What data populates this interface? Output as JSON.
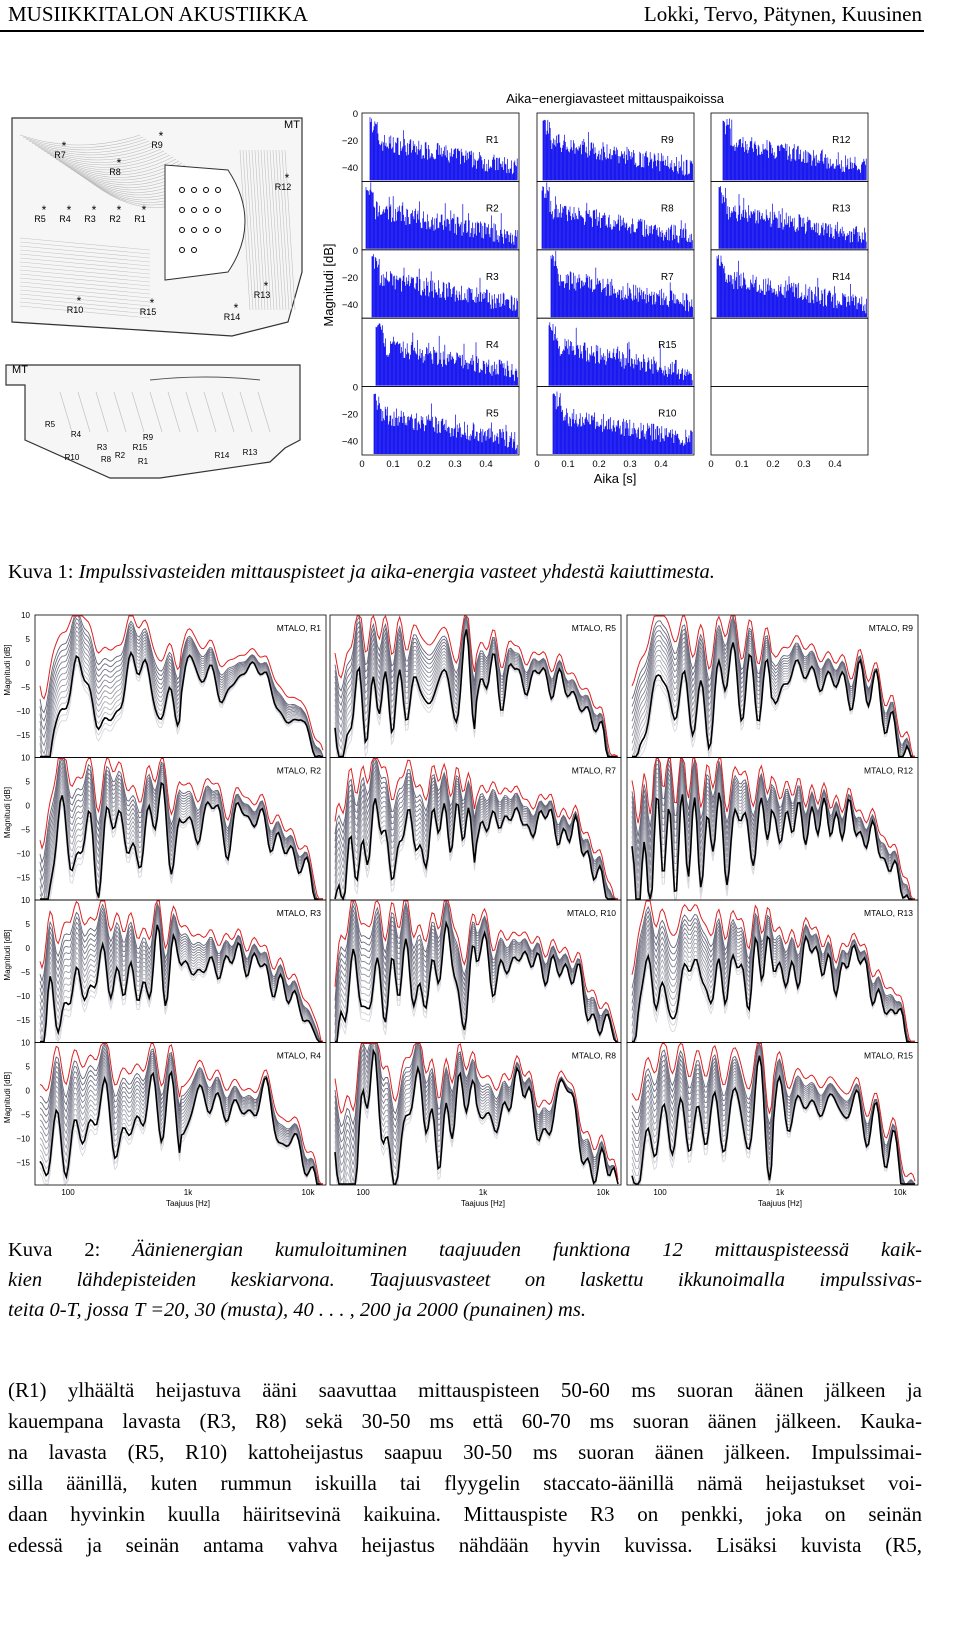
{
  "header": {
    "title": "MUSIIKKITALON AKUSTIIKKA",
    "authors": "Lokki, Tervo, Pätynen, Kuusinen"
  },
  "figure1": {
    "plan": {
      "top_labels": [
        "MT",
        "R9",
        "R7",
        "R8",
        "R12",
        "R5",
        "R4",
        "R3",
        "R2",
        "R1",
        "R13",
        "R10",
        "R15",
        "R14"
      ],
      "bottom_labels": [
        "MT",
        "R5",
        "R4",
        "R10",
        "R3",
        "R8",
        "R2",
        "R1",
        "R15",
        "R9",
        "R14",
        "R13"
      ]
    },
    "title": "Aika−energiavasteet mittauspaikoissa",
    "ylabel": "Magnitudi [dB]",
    "xlabel": "Aika [s]",
    "yticks": [
      "0",
      "−20",
      "−40"
    ],
    "xticks": [
      "0",
      "0.1",
      "0.2",
      "0.3",
      "0.4"
    ],
    "panels": [
      [
        "R1",
        "R2",
        "R3",
        "R4",
        "R5"
      ],
      [
        "R9",
        "R8",
        "R7",
        "R15",
        "R10"
      ],
      [
        "R12",
        "R13",
        "R14"
      ]
    ],
    "caption": {
      "label": "Kuva 1:",
      "text": "Impulssivasteiden mittauspisteet ja aika-energia vasteet yhdestä kaiuttimesta."
    }
  },
  "figure2": {
    "ylabel": "Magnitudi [dB]",
    "xlabel": "Taajuus [Hz]",
    "yticks": [
      "10",
      "5",
      "0",
      "−5",
      "−10",
      "−15"
    ],
    "xticks": [
      "100",
      "1k",
      "10k"
    ],
    "panels": [
      [
        "MTALO, R1",
        "MTALO, R2",
        "MTALO, R3",
        "MTALO, R4"
      ],
      [
        "MTALO, R5",
        "MTALO, R7",
        "MTALO, R10",
        "MTALO, R8"
      ],
      [
        "MTALO, R9",
        "MTALO, R12",
        "MTALO, R13",
        "MTALO, R15"
      ]
    ],
    "caption": {
      "label": "Kuva 2:",
      "lines": [
        "Äänienergian kumuloituminen taajuuden funktiona 12 mittauspisteessä kaik-",
        "kien lähdepisteiden keskiarvona. Taajuusvasteet on laskettu ikkunoimalla impulssivas-",
        "teita 0-T, jossa T =20, 30 (musta), 40 . . . , 200 ja 2000 (punainen) ms."
      ]
    }
  },
  "body": {
    "lines": [
      "(R1) ylhäältä heijastuva ääni saavuttaa mittauspisteen 50-60 ms suoran äänen jälkeen ja",
      "kauempana lavasta (R3, R8) sekä 30-50 ms että 60-70 ms suoran äänen jälkeen. Kauka-",
      "na lavasta (R5, R10) kattoheijastus saapuu 30-50 ms suoran äänen jälkeen. Impulssimai-",
      "silla äänillä, kuten rummun iskuilla tai flyygelin staccato-äänillä nämä heijastukset voi-",
      "daan hyvinkin kuulla häiritsevinä kaikuina. Mittauspiste R3 on penkki, joka on seinän",
      "edessä ja seinän antama vahva heijastus nähdään hyvin kuvissa. Lisäksi kuvista (R5,"
    ]
  }
}
